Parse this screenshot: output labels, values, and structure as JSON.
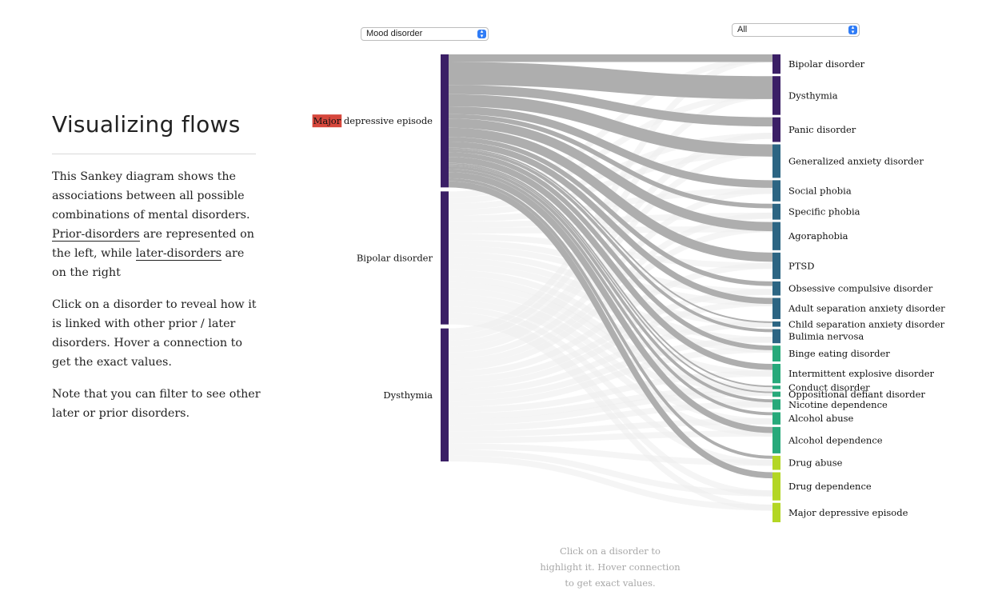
{
  "page": {
    "title": "Visualizing flows",
    "intro": {
      "p1_a": "This Sankey diagram shows the associations between all possible combinations of mental disorders. ",
      "p1_prior": "Prior-disorders",
      "p1_b": " are represented on the left, while ",
      "p1_later": "later-disorders",
      "p1_c": " are on the right",
      "p2": "Click on a disorder to reveal how it is linked with other prior / later disorders. Hover a connection to get the exact values.",
      "p3": "Note that you can filter to see other later or prior disorders."
    },
    "hint": "Click on a disorder to highlight it. Hover connection to get exact values."
  },
  "filters": {
    "left": {
      "selected": "Mood disorder"
    },
    "right": {
      "selected": "All"
    }
  },
  "colors": {
    "mood": "#3b1f66",
    "anxiety": "#2c6583",
    "impulse": "#27a97a",
    "substance": "#b3d624",
    "link_active": "#aeaeae",
    "link_faded": "#ececec",
    "highlight": "#d6473c"
  },
  "chart_data": {
    "type": "sankey",
    "selected_node": "Major depressive episode",
    "search_highlight": "Major",
    "left_nodes": [
      {
        "name": "Major depressive episode",
        "value": 100,
        "color": "mood"
      },
      {
        "name": "Bipolar disorder",
        "value": 100,
        "color": "mood"
      },
      {
        "name": "Dysthymia",
        "value": 100,
        "color": "mood"
      }
    ],
    "right_nodes": [
      {
        "name": "Bipolar disorder",
        "value": 11,
        "color": "mood"
      },
      {
        "name": "Dysthymia",
        "value": 22,
        "color": "mood"
      },
      {
        "name": "Panic disorder",
        "value": 14,
        "color": "mood"
      },
      {
        "name": "Generalized anxiety disorder",
        "value": 19,
        "color": "anxiety"
      },
      {
        "name": "Social phobia",
        "value": 12,
        "color": "anxiety"
      },
      {
        "name": "Specific phobia",
        "value": 9,
        "color": "anxiety"
      },
      {
        "name": "Agoraphobia",
        "value": 16,
        "color": "anxiety"
      },
      {
        "name": "PTSD",
        "value": 15,
        "color": "anxiety"
      },
      {
        "name": "Obsessive compulsive disorder",
        "value": 8,
        "color": "anxiety"
      },
      {
        "name": "Adult separation anxiety disorder",
        "value": 12,
        "color": "anxiety"
      },
      {
        "name": "Child separation anxiety disorder",
        "value": 3,
        "color": "anxiety"
      },
      {
        "name": "Bulimia nervosa",
        "value": 8,
        "color": "anxiety"
      },
      {
        "name": "Binge eating disorder",
        "value": 9,
        "color": "impulse"
      },
      {
        "name": "Intermittent explosive disorder",
        "value": 11,
        "color": "impulse"
      },
      {
        "name": "Conduct disorder",
        "value": 2,
        "color": "impulse"
      },
      {
        "name": "Oppositional defiant disorder",
        "value": 3,
        "color": "impulse"
      },
      {
        "name": "Nicotine dependence",
        "value": 6,
        "color": "impulse"
      },
      {
        "name": "Alcohol abuse",
        "value": 7,
        "color": "impulse"
      },
      {
        "name": "Alcohol dependence",
        "value": 15,
        "color": "impulse"
      },
      {
        "name": "Drug abuse",
        "value": 8,
        "color": "substance"
      },
      {
        "name": "Drug dependence",
        "value": 16,
        "color": "substance"
      },
      {
        "name": "Major depressive episode",
        "value": 11,
        "color": "substance"
      }
    ],
    "links_from_selected": [
      {
        "target": "Bipolar disorder",
        "value": 5
      },
      {
        "target": "Dysthymia",
        "value": 15
      },
      {
        "target": "Panic disorder",
        "value": 6
      },
      {
        "target": "Generalized anxiety disorder",
        "value": 8
      },
      {
        "target": "Social phobia",
        "value": 5
      },
      {
        "target": "Specific phobia",
        "value": 3
      },
      {
        "target": "Agoraphobia",
        "value": 6
      },
      {
        "target": "PTSD",
        "value": 6
      },
      {
        "target": "Obsessive compulsive disorder",
        "value": 3
      },
      {
        "target": "Adult separation anxiety disorder",
        "value": 4
      },
      {
        "target": "Child separation anxiety disorder",
        "value": 1
      },
      {
        "target": "Bulimia nervosa",
        "value": 2
      },
      {
        "target": "Binge eating disorder",
        "value": 3
      },
      {
        "target": "Intermittent explosive disorder",
        "value": 4
      },
      {
        "target": "Conduct disorder",
        "value": 1
      },
      {
        "target": "Oppositional defiant disorder",
        "value": 1
      },
      {
        "target": "Nicotine dependence",
        "value": 2
      },
      {
        "target": "Alcohol abuse",
        "value": 2
      },
      {
        "target": "Alcohol dependence",
        "value": 4
      },
      {
        "target": "Drug abuse",
        "value": 2
      },
      {
        "target": "Drug dependence",
        "value": 4
      }
    ]
  }
}
